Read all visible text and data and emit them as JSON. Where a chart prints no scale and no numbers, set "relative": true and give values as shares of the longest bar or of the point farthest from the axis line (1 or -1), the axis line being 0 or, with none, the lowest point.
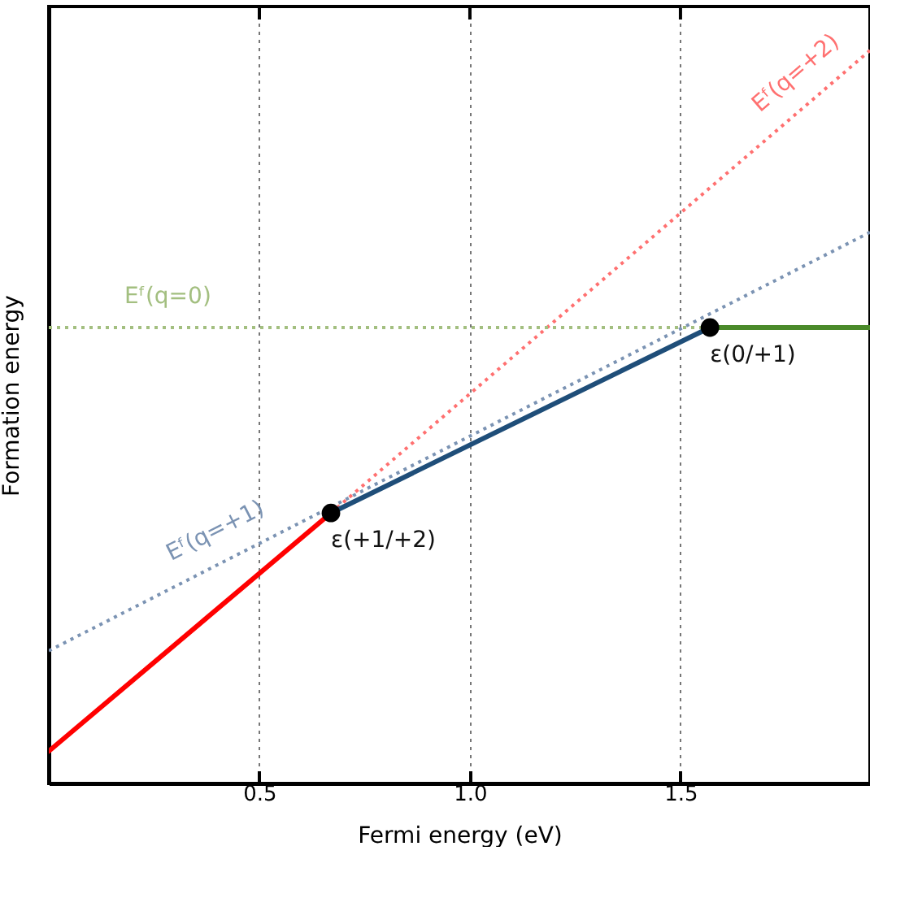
{
  "chart_data": {
    "type": "line",
    "relative": true,
    "xlabel": "Fermi energy (eV)",
    "ylabel": "Formation energy",
    "xlim": [
      0,
      1.95
    ],
    "xticks": [
      {
        "value": 0.5,
        "label": "0.5"
      },
      {
        "value": 1.0,
        "label": "1.0"
      },
      {
        "value": 1.5,
        "label": "1.5"
      }
    ],
    "grid": "x",
    "series": [
      {
        "name": "Eᶠ(q=+2)",
        "color": "#ff7070",
        "line_style": "dotted",
        "x": [
          0.67,
          1.95
        ],
        "values": [
          0.369,
          1.0
        ]
      },
      {
        "color": "#ff0000",
        "line_style": "solid",
        "x": [
          0,
          0.67
        ],
        "values": [
          0.044,
          0.369
        ]
      },
      {
        "name": "Eᶠ(q=+1)",
        "color": "#7b93b3",
        "line_style": "dotted",
        "x": [
          0,
          1.95
        ],
        "values": [
          0.181,
          0.752
        ]
      },
      {
        "color": "#1f4e79",
        "line_style": "solid",
        "x": [
          0.67,
          1.57
        ],
        "values": [
          0.369,
          0.622
        ]
      },
      {
        "name": "Eᶠ(q=0)",
        "color": "#a3bf80",
        "line_style": "dotted",
        "x": [
          0,
          1.57
        ],
        "values": [
          0.622,
          0.622
        ]
      },
      {
        "color": "#4a8a2a",
        "line_style": "solid",
        "x": [
          1.57,
          1.95
        ],
        "values": [
          0.622,
          0.622
        ]
      },
      {
        "type": "scatter",
        "marker": "circle",
        "color": "#000000",
        "x": [
          0.67,
          1.57
        ],
        "values": [
          0.369,
          0.622
        ]
      }
    ],
    "annotations": [
      {
        "text": "ε(+1/+2)",
        "x": 0.67,
        "y": 0.369
      },
      {
        "text": "ε(0/+1)",
        "x": 1.57,
        "y": 0.622
      }
    ]
  }
}
